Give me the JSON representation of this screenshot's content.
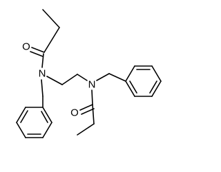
{
  "nodes": [
    {
      "label": "O"
    },
    {
      "label": "N"
    },
    {
      "label": "N"
    },
    {
      "label": "O"
    }
  ]
}
